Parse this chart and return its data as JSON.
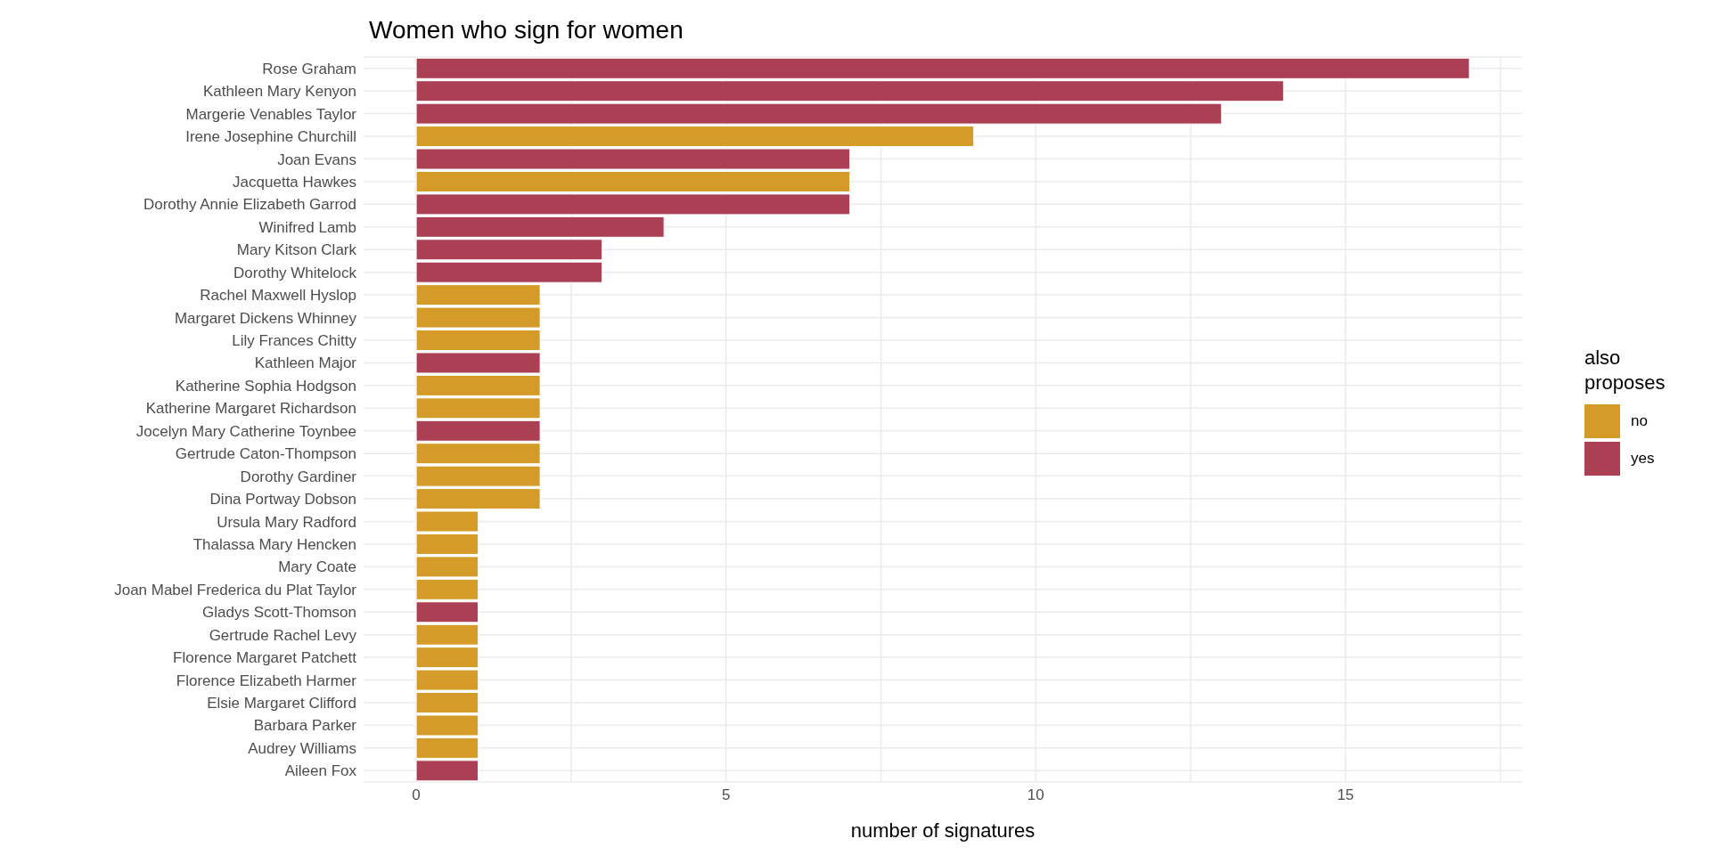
{
  "chart_data": {
    "type": "bar",
    "orientation": "horizontal",
    "stacked": true,
    "title": "Women who sign for women",
    "xlabel": "number of signatures",
    "legend_title": "also proposes",
    "legend": "right",
    "grid": true,
    "categories": [
      "Rose Graham",
      "Kathleen Mary Kenyon",
      "Margerie Venables Taylor",
      "Irene Josephine Churchill",
      "Joan Evans",
      "Jacquetta Hawkes",
      "Dorothy Annie Elizabeth Garrod",
      "Winifred Lamb",
      "Mary Kitson Clark",
      "Dorothy Whitelock",
      "Rachel Maxwell Hyslop",
      "Margaret Dickens Whinney",
      "Lily Frances Chitty",
      "Kathleen Major",
      "Katherine Sophia Hodgson",
      "Katherine Margaret Richardson",
      "Jocelyn Mary Catherine Toynbee",
      "Gertrude Caton-Thompson",
      "Dorothy Gardiner",
      "Dina Portway Dobson",
      "Ursula Mary Radford",
      "Thalassa Mary Hencken",
      "Mary Coate",
      "Joan Mabel Frederica du Plat Taylor",
      "Gladys Scott-Thomson",
      "Gertrude Rachel Levy",
      "Florence Margaret Patchett",
      "Florence Elizabeth Harmer",
      "Elsie Margaret Clifford",
      "Barbara Parker",
      "Audrey Williams",
      "Aileen Fox"
    ],
    "series": [
      {
        "name": "no",
        "color": "#d49b29",
        "values": [
          null,
          null,
          null,
          9,
          null,
          7,
          null,
          null,
          null,
          null,
          2,
          2,
          2,
          null,
          2,
          2,
          null,
          2,
          2,
          2,
          1,
          1,
          1,
          1,
          null,
          1,
          1,
          1,
          1,
          1,
          1,
          null
        ]
      },
      {
        "name": "yes",
        "color": "#ab4055",
        "values": [
          17,
          14,
          13,
          null,
          7,
          null,
          7,
          4,
          3,
          3,
          null,
          null,
          null,
          2,
          null,
          null,
          2,
          null,
          null,
          null,
          null,
          null,
          null,
          null,
          1,
          null,
          null,
          null,
          null,
          null,
          null,
          1
        ]
      }
    ],
    "xlim": [
      -0.85,
      17.85
    ],
    "xticks": [
      0,
      {
        "value": 2.5,
        "label": null
      },
      5,
      {
        "value": 7.5,
        "label": null
      },
      10,
      {
        "value": 12.5,
        "label": null
      },
      15,
      {
        "value": 17.5,
        "label": null
      }
    ]
  }
}
